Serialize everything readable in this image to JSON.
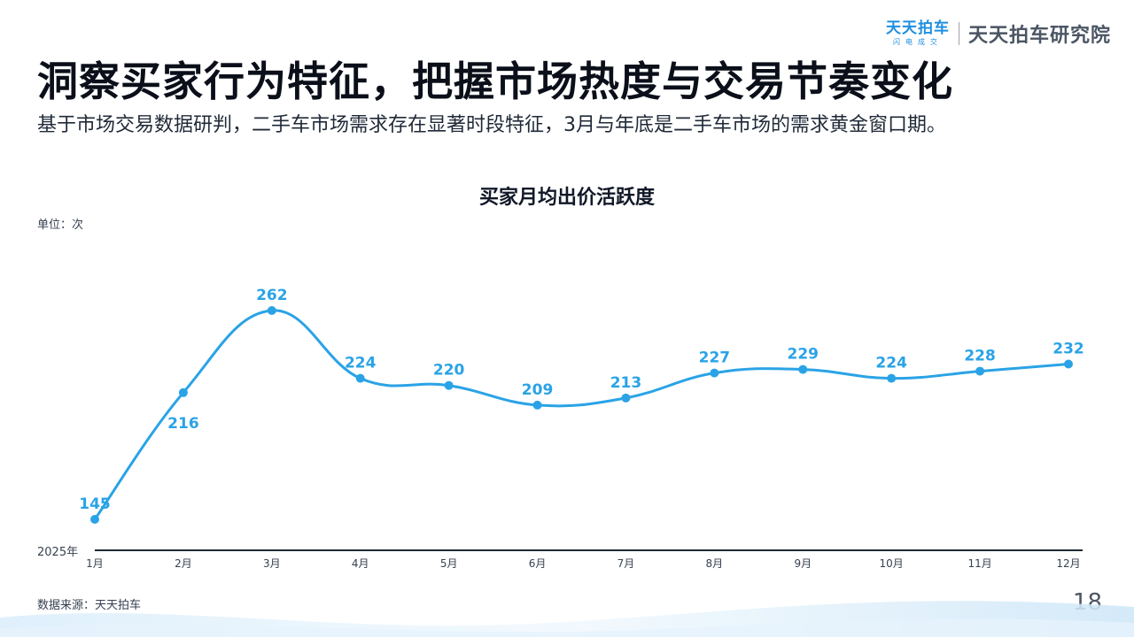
{
  "brand": {
    "logo_main": "天天拍车",
    "logo_sub": "闪电成交",
    "name": "天天拍车研究院"
  },
  "header": {
    "title": "洞察买家行为特征，把握市场热度与交易节奏变化",
    "subtitle": "基于市场交易数据研判，二手车市场需求存在显著时段特征，3月与年底是二手车市场的需求黄金窗口期。"
  },
  "chart_data": {
    "type": "line",
    "title": "买家月均出价活跃度",
    "unit": "单位：次",
    "year_label": "2025年",
    "categories": [
      "1月",
      "2月",
      "3月",
      "4月",
      "5月",
      "6月",
      "7月",
      "8月",
      "9月",
      "10月",
      "11月",
      "12月"
    ],
    "values": [
      145,
      216,
      262,
      224,
      220,
      209,
      213,
      227,
      229,
      224,
      228,
      232
    ],
    "label_positions": [
      "above",
      "below",
      "above",
      "above",
      "above",
      "above",
      "above",
      "above",
      "above",
      "above",
      "above",
      "above"
    ],
    "line_color": "#2aa3e6",
    "smooth": true,
    "grid": false,
    "legend": "none"
  },
  "footer": {
    "source": "数据来源：天天拍车",
    "page": "18"
  }
}
